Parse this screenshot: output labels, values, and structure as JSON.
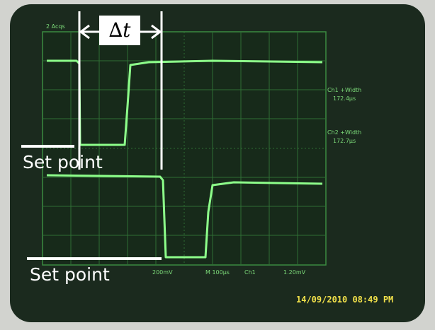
{
  "annotations": {
    "delta_t": "∆t",
    "set_points": [
      "Set point",
      "Set point"
    ]
  },
  "scope": {
    "status": "2 Acqs",
    "readouts": [
      "Ch1 +Width",
      "172.4µs",
      "Ch2 +Width",
      "172.7µs"
    ],
    "footer": [
      "200mV",
      "M 100µs",
      "Ch1",
      "1.20mV"
    ]
  },
  "timestamp": "14/09/2010 08:49 PM"
}
